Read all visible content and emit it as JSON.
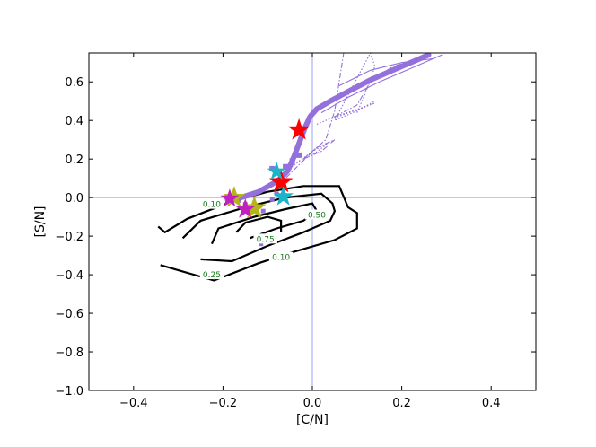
{
  "chart_data": {
    "type": "line",
    "xlabel": "[C/N]",
    "ylabel": "[S/N]",
    "xlim": [
      -0.5,
      0.5
    ],
    "ylim": [
      -1.0,
      0.75
    ],
    "grid": false,
    "reference_lines": {
      "x": 0.0,
      "y": 0.0,
      "color": "#7b8ff0"
    },
    "x_ticks": [
      {
        "value": -0.4,
        "label": "−0.4"
      },
      {
        "value": -0.2,
        "label": "−0.2"
      },
      {
        "value": 0.0,
        "label": "0.0"
      },
      {
        "value": 0.2,
        "label": "0.2"
      },
      {
        "value": 0.4,
        "label": "0.4"
      }
    ],
    "y_ticks": [
      {
        "value": -1.0,
        "label": "−1.0"
      },
      {
        "value": -0.8,
        "label": "−0.8"
      },
      {
        "value": -0.6,
        "label": "−0.6"
      },
      {
        "value": -0.4,
        "label": "−0.4"
      },
      {
        "value": -0.2,
        "label": "−0.2"
      },
      {
        "value": 0.0,
        "label": "0.0"
      },
      {
        "value": 0.2,
        "label": "0.2"
      },
      {
        "value": 0.4,
        "label": "0.4"
      },
      {
        "value": 0.6,
        "label": "0.6"
      }
    ],
    "colors": {
      "track": "#9370db",
      "contour": "#000000",
      "contour_label": "#1a7a1a",
      "star_red": "#ff0000",
      "star_cyan": "#1ab5c8",
      "star_olive": "#b5b51a",
      "star_magenta": "#c020c0"
    },
    "contours": [
      {
        "label": "0.10",
        "points": [
          [
            -0.345,
            -0.15
          ],
          [
            -0.33,
            -0.18
          ],
          [
            -0.28,
            -0.11
          ],
          [
            -0.18,
            -0.02
          ],
          [
            -0.1,
            0.03
          ],
          [
            -0.02,
            0.06
          ],
          [
            0.06,
            0.06
          ],
          [
            0.08,
            -0.05
          ],
          [
            0.1,
            -0.08
          ],
          [
            0.1,
            -0.16
          ],
          [
            0.05,
            -0.22
          ],
          [
            -0.04,
            -0.28
          ],
          [
            -0.12,
            -0.34
          ],
          [
            -0.22,
            -0.43
          ],
          [
            -0.34,
            -0.35
          ]
        ],
        "label_at": [
          -0.225,
          -0.035
        ],
        "label2": "0.10",
        "label2_at": [
          -0.07,
          -0.31
        ]
      },
      {
        "label": "0.25",
        "points": [
          [
            -0.29,
            -0.21
          ],
          [
            -0.25,
            -0.12
          ],
          [
            -0.15,
            -0.05
          ],
          [
            -0.06,
            0.0
          ],
          [
            0.02,
            0.02
          ],
          [
            0.045,
            -0.03
          ],
          [
            0.05,
            -0.07
          ],
          [
            0.04,
            -0.12
          ],
          [
            -0.02,
            -0.18
          ],
          [
            -0.1,
            -0.25
          ],
          [
            -0.18,
            -0.33
          ],
          [
            -0.25,
            -0.32
          ]
        ],
        "label_at": [
          -0.225,
          -0.4
        ]
      },
      {
        "label": "0.50",
        "points": [
          [
            -0.225,
            -0.24
          ],
          [
            -0.21,
            -0.16
          ],
          [
            -0.13,
            -0.1
          ],
          [
            -0.06,
            -0.06
          ],
          [
            0.0,
            -0.03
          ],
          [
            0.01,
            -0.07
          ],
          [
            -0.02,
            -0.12
          ],
          [
            -0.08,
            -0.16
          ],
          [
            -0.14,
            -0.21
          ]
        ],
        "label_at": [
          0.01,
          -0.09
        ]
      },
      {
        "label": "0.75",
        "points": [
          [
            -0.17,
            -0.18
          ],
          [
            -0.15,
            -0.13
          ],
          [
            -0.1,
            -0.1
          ],
          [
            -0.07,
            -0.12
          ],
          [
            -0.07,
            -0.18
          ]
        ],
        "label_at": [
          -0.105,
          -0.215
        ]
      }
    ],
    "series": [
      {
        "style": "thick",
        "x": [
          -0.19,
          -0.16,
          -0.12,
          -0.09,
          -0.07,
          -0.055,
          -0.045,
          -0.035,
          -0.025,
          -0.015,
          -0.005,
          0.01,
          0.04,
          0.08,
          0.13,
          0.18,
          0.23,
          0.26
        ],
        "y": [
          -0.01,
          0.0,
          0.03,
          0.07,
          0.1,
          0.14,
          0.19,
          0.25,
          0.31,
          0.37,
          0.42,
          0.46,
          0.5,
          0.55,
          0.61,
          0.66,
          0.71,
          0.74
        ]
      },
      {
        "style": "thin",
        "x": [
          0.02,
          0.08,
          0.15,
          0.22,
          0.29,
          0.27,
          0.2,
          0.13,
          0.06
        ],
        "y": [
          0.44,
          0.52,
          0.6,
          0.67,
          0.74,
          0.72,
          0.7,
          0.66,
          0.58
        ]
      },
      {
        "style": "dashdot",
        "x": [
          0.05,
          0.1,
          0.13,
          0.18,
          0.24
        ],
        "y": [
          0.42,
          0.48,
          0.6,
          0.68,
          0.72
        ]
      },
      {
        "style": "dotted",
        "x": [
          0.1,
          0.12,
          0.14,
          0.13,
          0.1,
          0.05,
          0.1,
          0.14
        ],
        "y": [
          0.44,
          0.55,
          0.68,
          0.75,
          0.62,
          0.4,
          0.45,
          0.5
        ]
      },
      {
        "style": "dashdot",
        "x": [
          -0.02,
          0.03,
          0.05,
          0.06,
          0.07
        ],
        "y": [
          0.2,
          0.3,
          0.45,
          0.6,
          0.75
        ]
      },
      {
        "style": "dotted",
        "x": [
          0.01,
          0.05,
          0.09,
          0.14,
          0.07,
          0.03
        ],
        "y": [
          0.38,
          0.42,
          0.45,
          0.49,
          0.43,
          0.4
        ]
      },
      {
        "style": "dashdot",
        "x": [
          -0.1,
          -0.06,
          -0.03,
          0.01,
          0.05,
          0.02,
          -0.03
        ],
        "y": [
          0.06,
          0.1,
          0.17,
          0.26,
          0.3,
          0.24,
          0.19
        ]
      },
      {
        "style": "dotted",
        "x": [
          -0.08,
          -0.04,
          0.0,
          0.04,
          0.0
        ],
        "y": [
          0.1,
          0.17,
          0.24,
          0.29,
          0.22
        ]
      }
    ],
    "markers": [
      {
        "x": -0.165,
        "y": -0.015,
        "size": 5
      },
      {
        "x": -0.15,
        "y": -0.035,
        "size": 5
      },
      {
        "x": -0.13,
        "y": -0.06,
        "size": 5
      },
      {
        "x": -0.11,
        "y": -0.07,
        "size": 5
      },
      {
        "x": -0.115,
        "y": -0.24,
        "size": 5
      },
      {
        "x": -0.09,
        "y": -0.01,
        "size": 5
      },
      {
        "x": -0.08,
        "y": 0.02,
        "size": 5
      },
      {
        "x": -0.075,
        "y": 0.13,
        "size": 6
      },
      {
        "x": -0.06,
        "y": 0.16,
        "size": 6
      },
      {
        "x": -0.045,
        "y": 0.19,
        "size": 6
      },
      {
        "x": -0.03,
        "y": 0.22,
        "size": 6
      },
      {
        "x": -0.09,
        "y": 0.15,
        "size": 6
      }
    ],
    "stars": [
      {
        "x": -0.03,
        "y": 0.35,
        "color": "star_red",
        "size": 13
      },
      {
        "x": -0.07,
        "y": 0.08,
        "color": "star_red",
        "size": 14
      },
      {
        "x": -0.08,
        "y": 0.135,
        "color": "star_cyan",
        "size": 11
      },
      {
        "x": -0.065,
        "y": 0.005,
        "color": "star_cyan",
        "size": 12
      },
      {
        "x": -0.175,
        "y": 0.0,
        "color": "star_olive",
        "size": 13
      },
      {
        "x": -0.13,
        "y": -0.055,
        "color": "star_olive",
        "size": 14
      },
      {
        "x": -0.185,
        "y": -0.005,
        "color": "star_magenta",
        "size": 11
      },
      {
        "x": -0.15,
        "y": -0.06,
        "color": "star_magenta",
        "size": 12
      }
    ]
  }
}
